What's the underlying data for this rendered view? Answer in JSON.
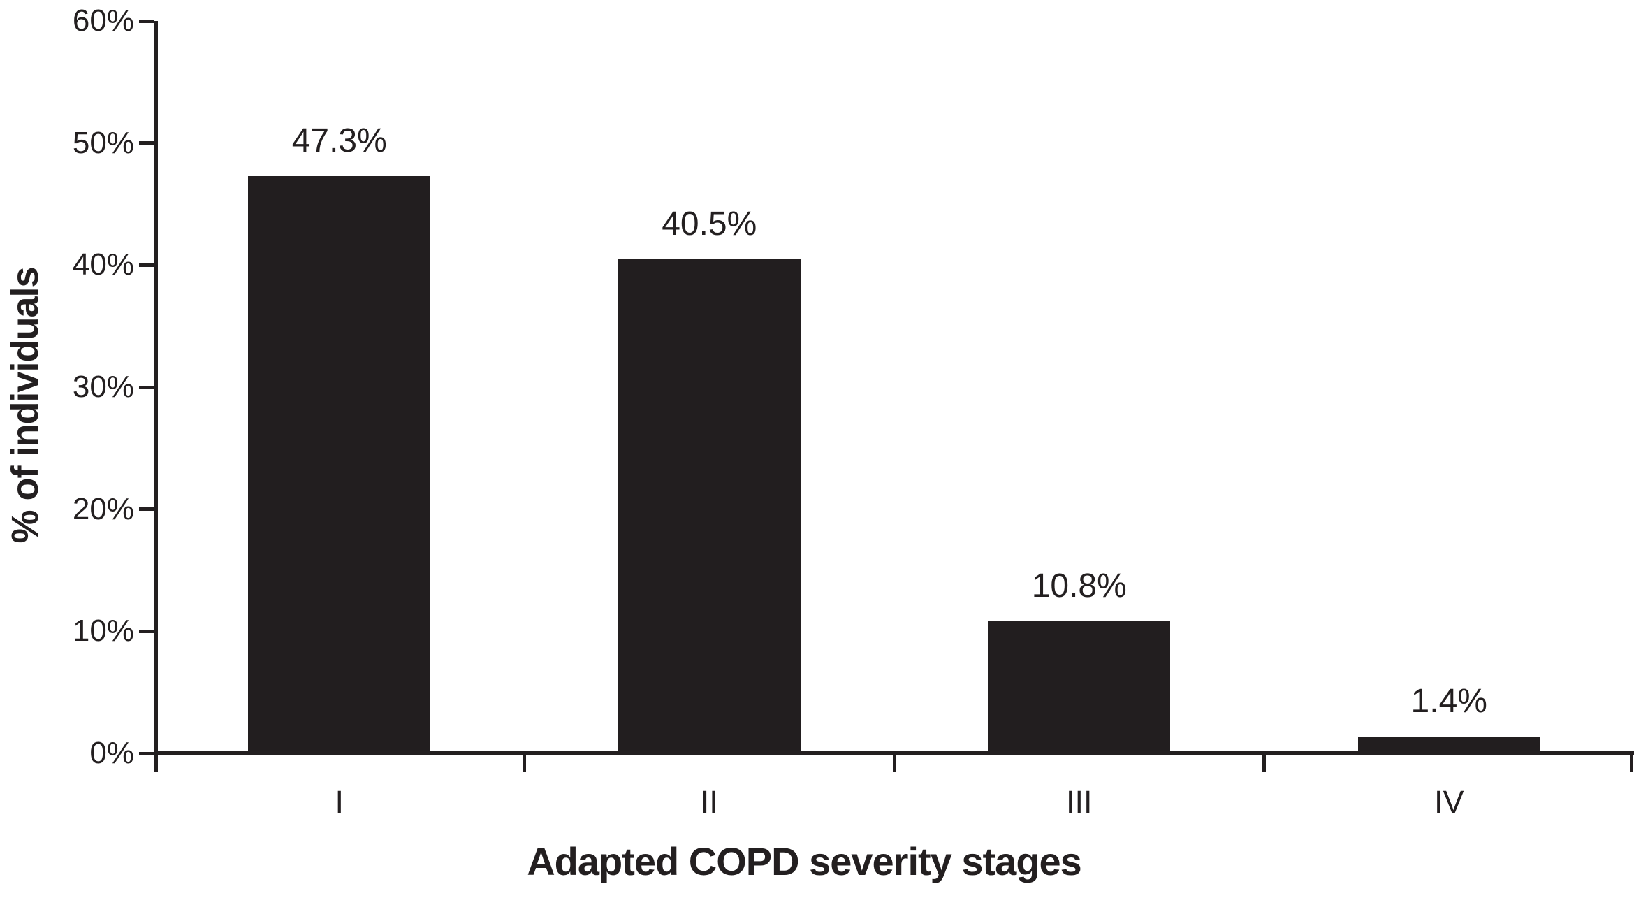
{
  "figure": {
    "background": "#ffffff",
    "ink_color": "#231f20",
    "bar_color": "#221e1f"
  },
  "chart_data": {
    "type": "bar",
    "title": "",
    "categories": [
      "I",
      "II",
      "III",
      "IV"
    ],
    "values": [
      47.3,
      40.5,
      10.8,
      1.4
    ],
    "value_labels": [
      "47.3%",
      "40.5%",
      "10.8%",
      "1.4%"
    ],
    "xlabel": "Adapted COPD severity stages",
    "ylabel": "% of individuals",
    "ylim": [
      0,
      60
    ],
    "ytick_step": 10,
    "yticks": [
      0,
      10,
      20,
      30,
      40,
      50,
      60
    ],
    "ytick_labels": [
      "0%",
      "10%",
      "20%",
      "30%",
      "40%",
      "50%",
      "60%"
    ],
    "grid": false,
    "legend": null,
    "bar_color": "#221e1f"
  }
}
